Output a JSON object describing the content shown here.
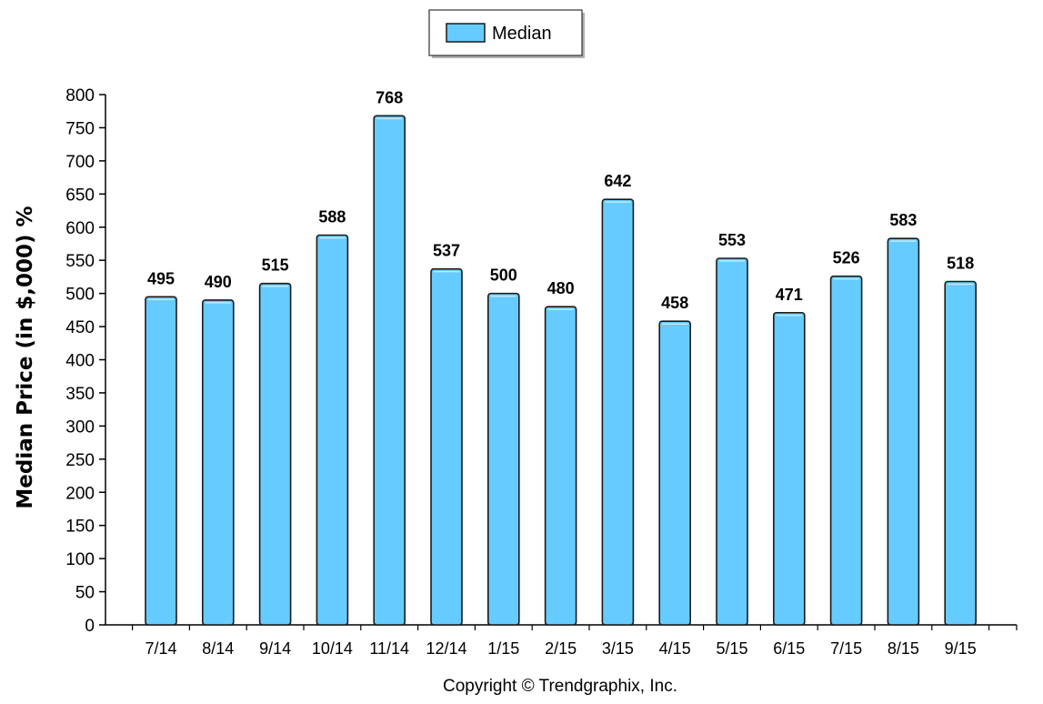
{
  "chart_data": {
    "type": "bar",
    "categories": [
      "7/14",
      "8/14",
      "9/14",
      "10/14",
      "11/14",
      "12/14",
      "1/15",
      "2/15",
      "3/15",
      "4/15",
      "5/15",
      "6/15",
      "7/15",
      "8/15",
      "9/15"
    ],
    "series": [
      {
        "name": "Median",
        "values": [
          495,
          490,
          515,
          588,
          768,
          537,
          500,
          480,
          642,
          458,
          553,
          471,
          526,
          583,
          518
        ],
        "color": "#66ccff"
      }
    ],
    "title": "",
    "xlabel": "",
    "ylabel": "Median Price (in $,000) %",
    "ylim": [
      0,
      800
    ],
    "yticks": [
      0,
      50,
      100,
      150,
      200,
      250,
      300,
      350,
      400,
      450,
      500,
      550,
      600,
      650,
      700,
      750,
      800
    ],
    "grid": false,
    "legend_position": "top-center",
    "data_labels": true
  },
  "footer": {
    "copyright": "Copyright © Trendgraphix, Inc."
  },
  "colors": {
    "bar_fill": "#66ccff",
    "bar_stroke": "#1a1a1a",
    "axis": "#000000"
  }
}
